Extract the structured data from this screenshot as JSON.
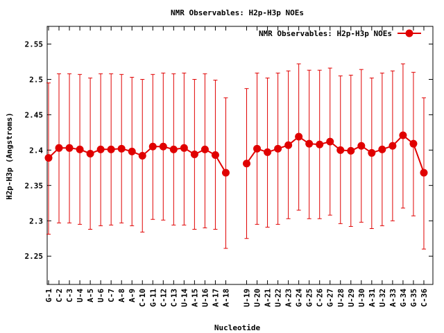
{
  "chart_data": {
    "type": "line",
    "title": "NMR Observables: H2p-H3p NOEs",
    "xlabel": "Nucleotide",
    "ylabel": "H2p-H3p (Angstroms)",
    "ylim": [
      2.21,
      2.575
    ],
    "yticks": [
      "2.25",
      "2.3",
      "2.35",
      "2.4",
      "2.45",
      "2.5",
      "2.55"
    ],
    "grid": false,
    "legend_position": "top-right",
    "color": "#e00000",
    "categories": [
      "G-1",
      "C-2",
      "C-3",
      "U-4",
      "A-5",
      "U-6",
      "C-7",
      "A-8",
      "A-9",
      "C-10",
      "G-11",
      "C-12",
      "C-13",
      "U-14",
      "A-15",
      "U-16",
      "A-17",
      "A-18",
      "U-19",
      "U-20",
      "A-21",
      "U-22",
      "A-23",
      "G-24",
      "G-25",
      "C-26",
      "G-27",
      "U-28",
      "U-29",
      "U-30",
      "A-31",
      "U-32",
      "A-33",
      "G-34",
      "G-35",
      "C-36"
    ],
    "segments": [
      [
        0,
        17
      ],
      [
        18,
        35
      ]
    ],
    "series": [
      {
        "name": "NMR Observables: H2p-H3p NOEs",
        "values": [
          2.389,
          2.403,
          2.403,
          2.401,
          2.395,
          2.401,
          2.401,
          2.402,
          2.398,
          2.392,
          2.405,
          2.405,
          2.401,
          2.403,
          2.394,
          2.401,
          2.393,
          2.368,
          2.381,
          2.402,
          2.397,
          2.402,
          2.407,
          2.419,
          2.409,
          2.408,
          2.412,
          2.4,
          2.399,
          2.406,
          2.396,
          2.401,
          2.406,
          2.421,
          2.409,
          2.368
        ],
        "error_low": [
          2.281,
          2.297,
          2.297,
          2.295,
          2.288,
          2.293,
          2.294,
          2.297,
          2.293,
          2.284,
          2.302,
          2.301,
          2.294,
          2.294,
          2.288,
          2.29,
          2.288,
          2.261,
          2.275,
          2.295,
          2.291,
          2.295,
          2.303,
          2.315,
          2.303,
          2.303,
          2.308,
          2.296,
          2.292,
          2.298,
          2.289,
          2.293,
          2.3,
          2.318,
          2.307,
          2.26
        ],
        "error_high": [
          2.495,
          2.508,
          2.508,
          2.507,
          2.502,
          2.508,
          2.508,
          2.507,
          2.503,
          2.5,
          2.507,
          2.509,
          2.508,
          2.509,
          2.5,
          2.508,
          2.499,
          2.474,
          2.487,
          2.509,
          2.502,
          2.509,
          2.512,
          2.522,
          2.513,
          2.513,
          2.516,
          2.505,
          2.506,
          2.514,
          2.502,
          2.509,
          2.512,
          2.522,
          2.51,
          2.474
        ]
      }
    ]
  }
}
